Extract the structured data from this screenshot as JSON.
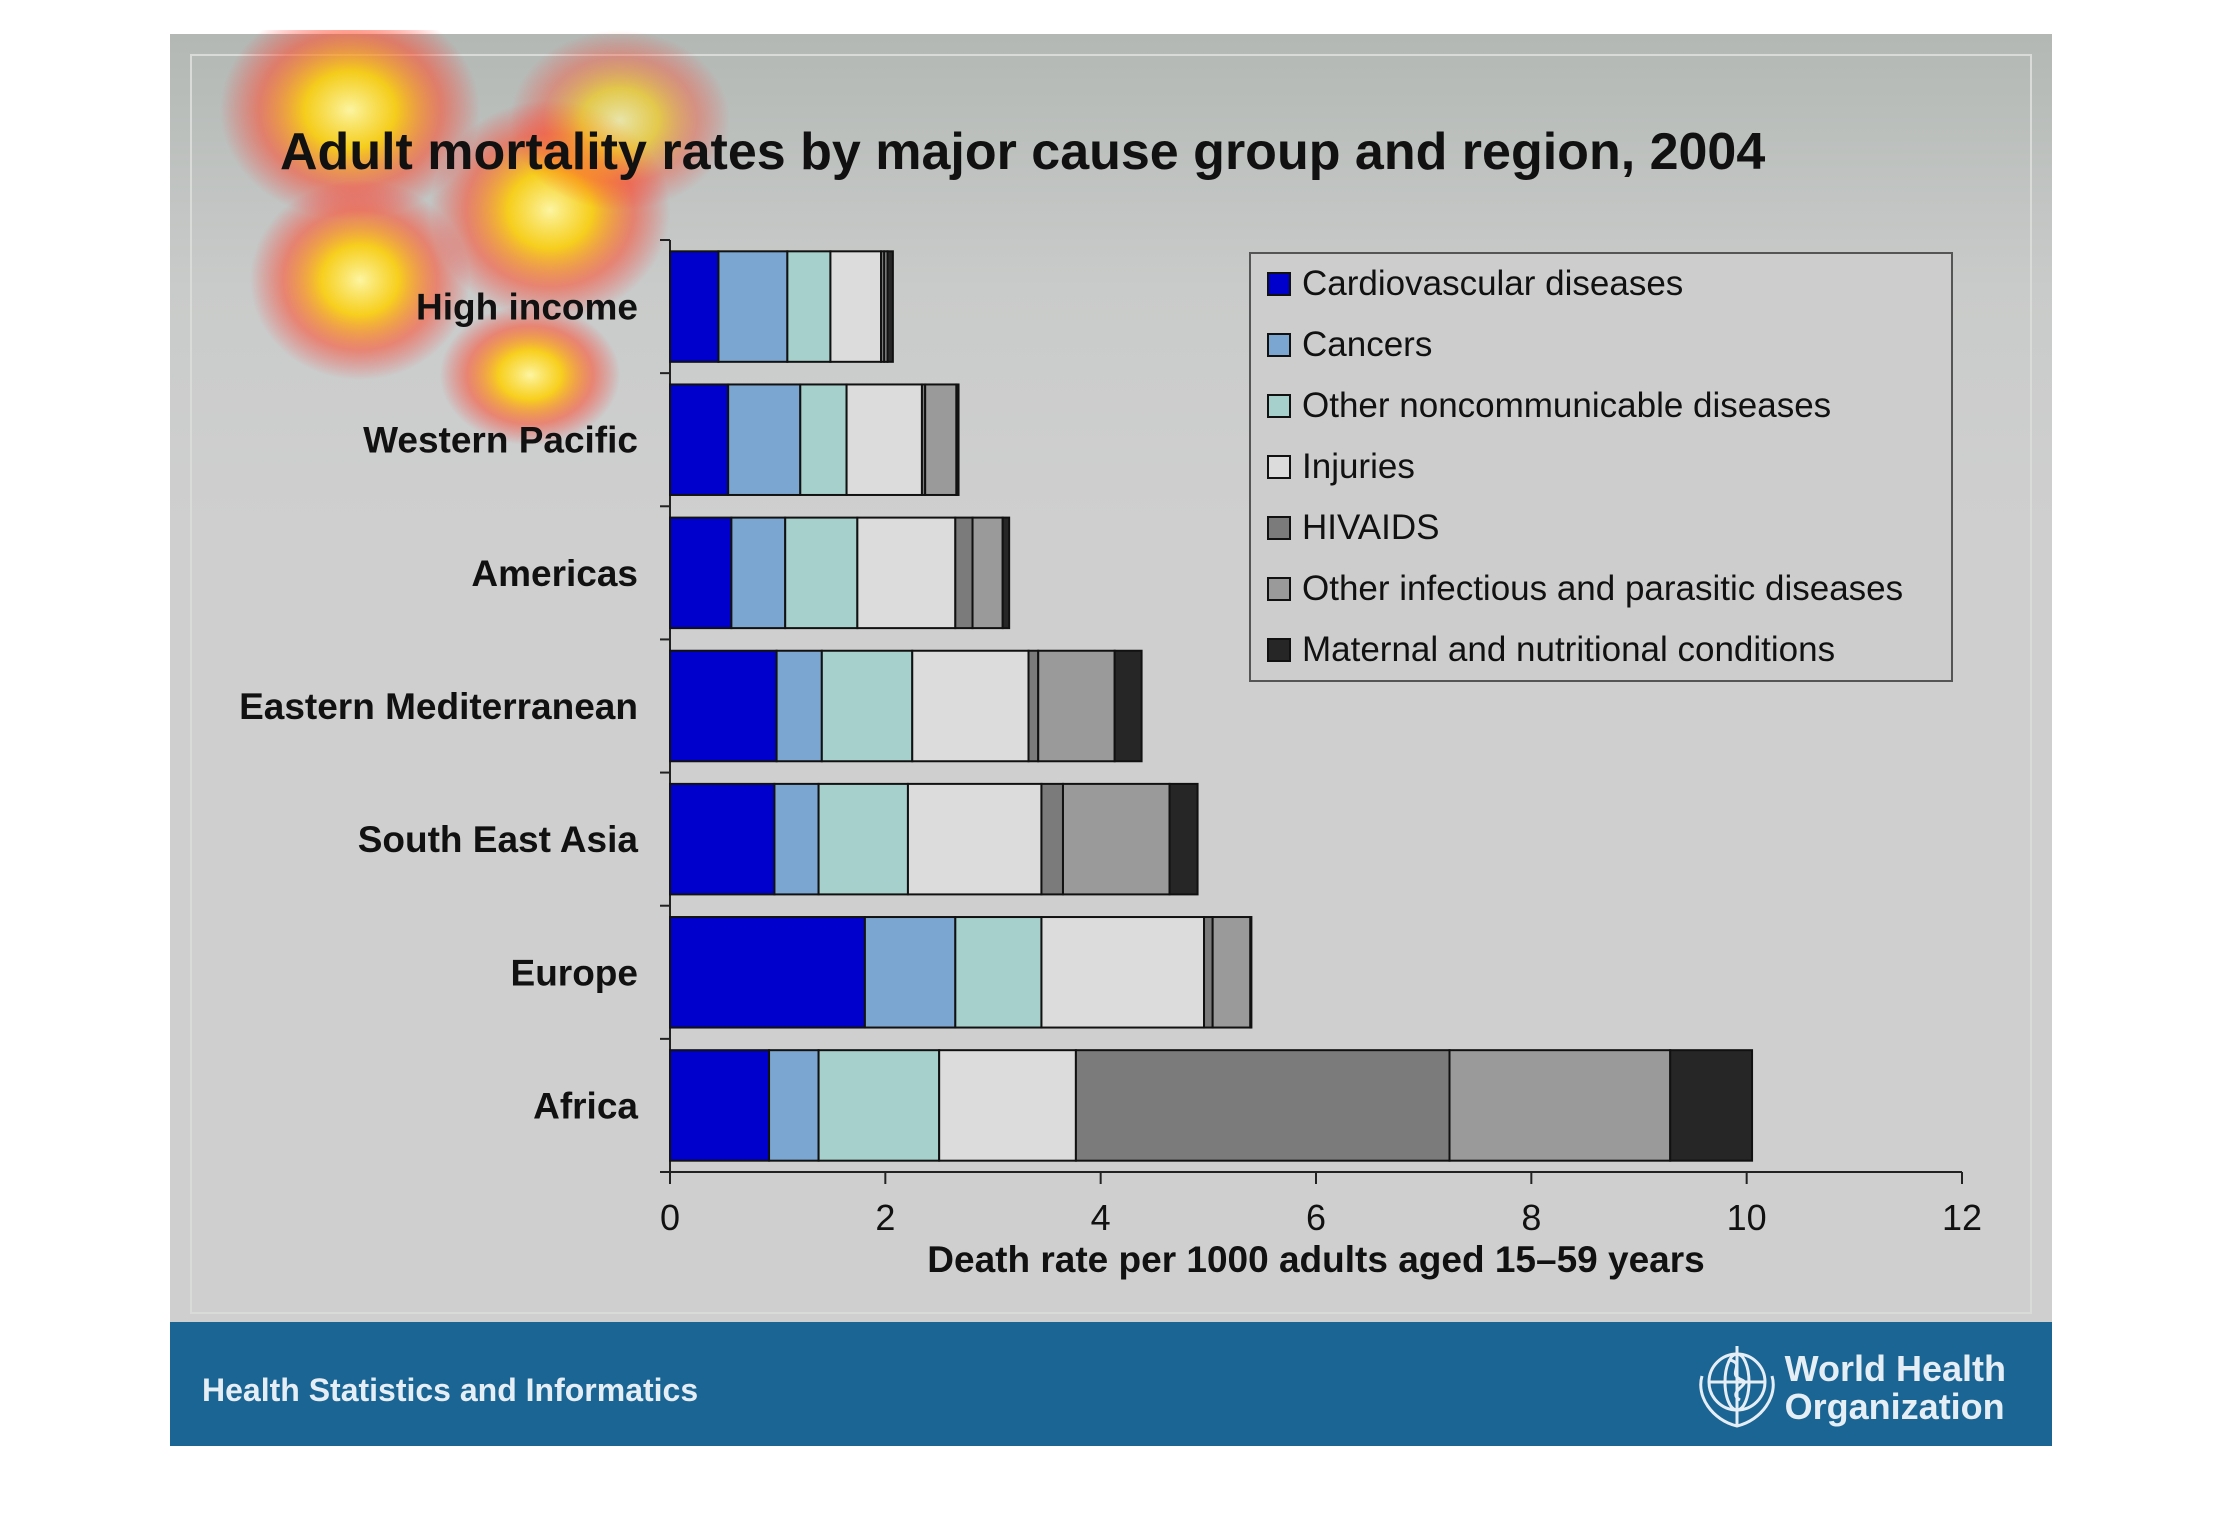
{
  "footer": {
    "department": "Health Statistics and Informatics",
    "org_line1": "World Health",
    "org_line2": "Organization"
  },
  "colors": {
    "Cardiovascular diseases": "#0000cc",
    "Cancers": "#7ba6d2",
    "Other noncommunicable diseases": "#a6d0cc",
    "Injuries": "#dcdcdc",
    "HIVAIDS": "#7b7b7b",
    "Other infectious and parasitic diseases": "#9a9a9a",
    "Maternal and nutritional conditions": "#262626"
  },
  "chart_data": {
    "type": "bar",
    "orientation": "horizontal",
    "stacked": true,
    "title": "Adult mortality rates by major cause group and region, 2004",
    "xlabel": "Death rate per 1000 adults aged 15–59 years",
    "ylabel": "",
    "xlim": [
      0,
      12
    ],
    "xticks": [
      "0",
      "2",
      "4",
      "6",
      "8",
      "10",
      "12"
    ],
    "legend_position": "top-right",
    "categories": [
      "High income",
      "Western Pacific",
      "Americas",
      "Eastern Mediterranean",
      "South East Asia",
      "Europe",
      "Africa"
    ],
    "series": [
      {
        "name": "Cardiovascular diseases",
        "values": [
          0.45,
          0.54,
          0.57,
          0.99,
          0.97,
          1.81,
          0.92
        ]
      },
      {
        "name": "Cancers",
        "values": [
          0.64,
          0.67,
          0.5,
          0.42,
          0.41,
          0.84,
          0.46
        ]
      },
      {
        "name": "Other noncommunicable diseases",
        "values": [
          0.4,
          0.43,
          0.67,
          0.84,
          0.83,
          0.8,
          1.12
        ]
      },
      {
        "name": "Injuries",
        "values": [
          0.47,
          0.7,
          0.91,
          1.08,
          1.24,
          1.51,
          1.27
        ]
      },
      {
        "name": "HIVAIDS",
        "values": [
          0.03,
          0.03,
          0.16,
          0.09,
          0.2,
          0.08,
          3.47
        ]
      },
      {
        "name": "Other infectious and parasitic diseases",
        "values": [
          0.03,
          0.29,
          0.28,
          0.71,
          0.99,
          0.35,
          2.05
        ]
      },
      {
        "name": "Maternal and nutritional conditions",
        "values": [
          0.05,
          0.02,
          0.06,
          0.25,
          0.26,
          0.01,
          0.76
        ]
      }
    ]
  }
}
